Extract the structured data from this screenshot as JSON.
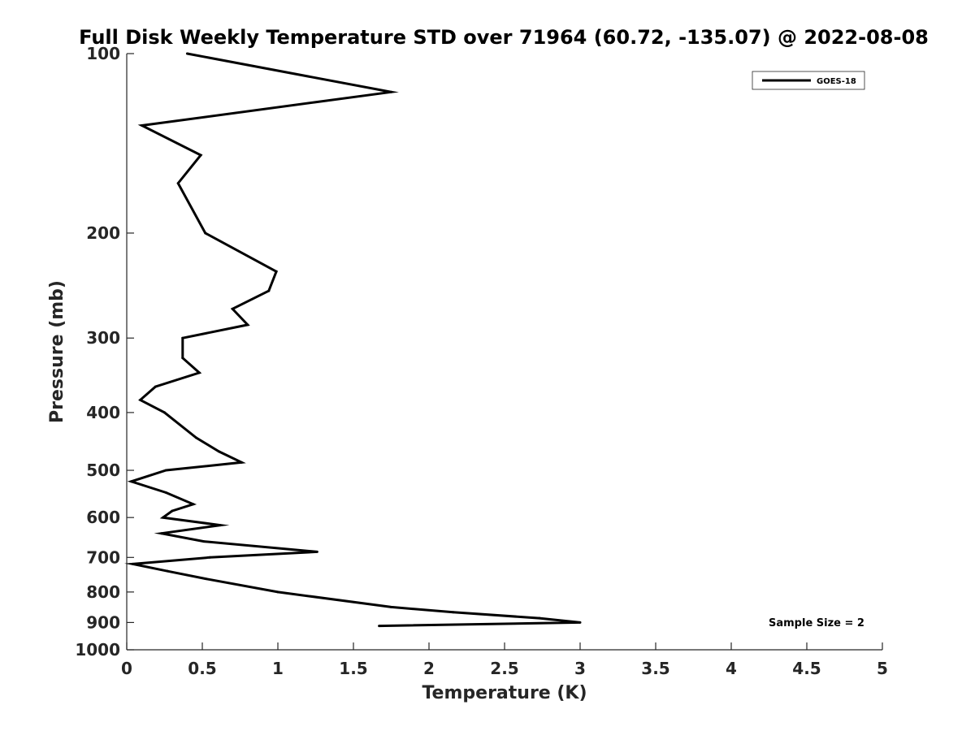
{
  "chart_data": {
    "type": "line",
    "title": "Full Disk Weekly Temperature STD over 71964 (60.72, -135.07) @ 2022-08-08",
    "xlabel": "Temperature (K)",
    "ylabel": "Pressure (mb)",
    "xlim": [
      0,
      5
    ],
    "ylim": [
      1000,
      100
    ],
    "y_scale": "log",
    "y_reversed": true,
    "x_ticks": [
      "0",
      "0.5",
      "1",
      "1.5",
      "2",
      "2.5",
      "3",
      "3.5",
      "4",
      "4.5",
      "5"
    ],
    "y_ticks": [
      "100",
      "200",
      "300",
      "400",
      "500",
      "600",
      "700",
      "800",
      "900",
      "1000"
    ],
    "grid": false,
    "legend_position": "top-right",
    "annotation": "Sample Size = 2",
    "series": [
      {
        "name": "GOES-18",
        "color": "#000000",
        "points": [
          {
            "x": 0.4,
            "p": 100
          },
          {
            "x": 1.75,
            "p": 116
          },
          {
            "x": 0.1,
            "p": 132
          },
          {
            "x": 0.49,
            "p": 148
          },
          {
            "x": 0.34,
            "p": 165
          },
          {
            "x": 0.52,
            "p": 200
          },
          {
            "x": 0.99,
            "p": 232
          },
          {
            "x": 0.94,
            "p": 250
          },
          {
            "x": 0.7,
            "p": 268
          },
          {
            "x": 0.8,
            "p": 285
          },
          {
            "x": 0.37,
            "p": 300
          },
          {
            "x": 0.37,
            "p": 324
          },
          {
            "x": 0.48,
            "p": 343
          },
          {
            "x": 0.19,
            "p": 362
          },
          {
            "x": 0.09,
            "p": 381
          },
          {
            "x": 0.25,
            "p": 400
          },
          {
            "x": 0.46,
            "p": 441
          },
          {
            "x": 0.61,
            "p": 465
          },
          {
            "x": 0.76,
            "p": 485
          },
          {
            "x": 0.26,
            "p": 500
          },
          {
            "x": 0.03,
            "p": 522
          },
          {
            "x": 0.26,
            "p": 545
          },
          {
            "x": 0.44,
            "p": 570
          },
          {
            "x": 0.3,
            "p": 585
          },
          {
            "x": 0.24,
            "p": 600
          },
          {
            "x": 0.62,
            "p": 618
          },
          {
            "x": 0.23,
            "p": 638
          },
          {
            "x": 0.51,
            "p": 658
          },
          {
            "x": 1.26,
            "p": 685
          },
          {
            "x": 0.55,
            "p": 700
          },
          {
            "x": 0.04,
            "p": 718
          },
          {
            "x": 0.27,
            "p": 738
          },
          {
            "x": 0.52,
            "p": 760
          },
          {
            "x": 1.0,
            "p": 800
          },
          {
            "x": 1.75,
            "p": 848
          },
          {
            "x": 2.16,
            "p": 865
          },
          {
            "x": 2.73,
            "p": 885
          },
          {
            "x": 3.0,
            "p": 900
          },
          {
            "x": 1.67,
            "p": 912
          }
        ]
      }
    ]
  }
}
